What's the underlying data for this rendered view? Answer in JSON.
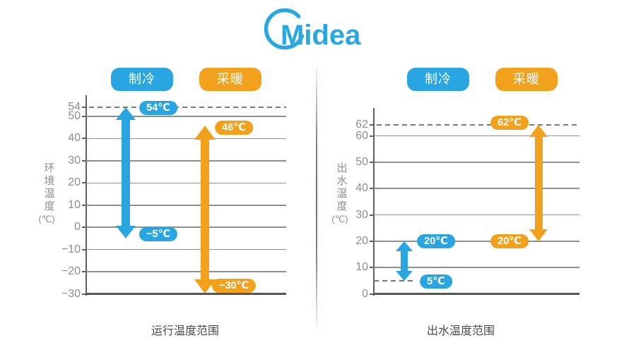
{
  "logo": {
    "text": "Midea",
    "color": "#2BA7E0"
  },
  "colors": {
    "cooling_blue": "#29A6E2",
    "heating_orange": "#F2A11D"
  },
  "chart_data": [
    {
      "type": "bar",
      "subtype": "vertical-temperature-range-arrows",
      "title": "运行温度范围",
      "ylabel": "环境温度",
      "ylabel_unit": "(℃)",
      "ylim": [
        -30,
        54
      ],
      "grid": true,
      "legend_position": "top",
      "yticks": [
        54,
        50,
        40,
        30,
        20,
        10,
        0,
        -10,
        -20,
        -30
      ],
      "dashed_gridlines": [
        54
      ],
      "series": [
        {
          "name": "制冷",
          "color": "#29A6E2",
          "max": 54,
          "min": -5,
          "max_label": "54℃",
          "min_label": "−5℃"
        },
        {
          "name": "采暖",
          "color": "#F2A11D",
          "max": 46,
          "min": -30,
          "max_label": "46℃",
          "min_label": "−30℃"
        }
      ]
    },
    {
      "type": "bar",
      "subtype": "vertical-temperature-range-arrows",
      "title": "出水温度范围",
      "ylabel": "出水温度",
      "ylabel_unit": "(℃)",
      "ylim": [
        0,
        62
      ],
      "grid": true,
      "legend_position": "top",
      "yticks": [
        62,
        60,
        50,
        40,
        30,
        20,
        10,
        0
      ],
      "dashed_gridlines": [
        62,
        5
      ],
      "series": [
        {
          "name": "制冷",
          "color": "#29A6E2",
          "max": 20,
          "min": 5,
          "max_label": "20℃",
          "min_label": "5℃"
        },
        {
          "name": "采暖",
          "color": "#F2A11D",
          "max": 62,
          "min": 20,
          "max_label": "62℃",
          "min_label": "20℃"
        }
      ]
    }
  ]
}
